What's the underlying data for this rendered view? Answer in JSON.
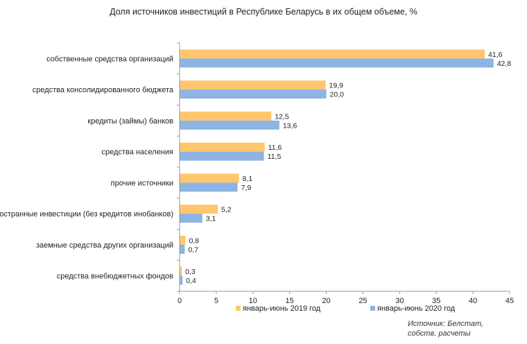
{
  "chart_data": {
    "type": "bar",
    "orientation": "horizontal",
    "title": "Доля источников инвестиций в Республике Беларусь в их общем объеме, %",
    "categories": [
      "собственные средства организаций",
      "средства консолидированного бюджета",
      "кредиты (займы) банков",
      "средства населения",
      "прочие источники",
      "иностранные инвестиции (без кредитов инобанков)",
      "заемные средства других организаций",
      "средства внебюджетных фондов"
    ],
    "series": [
      {
        "name": "январь-июнь 2019 год",
        "color": "#ffc66e",
        "values": [
          41.6,
          19.9,
          12.5,
          11.6,
          8.1,
          5.2,
          0.8,
          0.3
        ],
        "labels": [
          "41,6",
          "19,9",
          "12,5",
          "11,6",
          "8,1",
          "5,2",
          "0,8",
          "0,3"
        ]
      },
      {
        "name": "январь-июнь 2020 год",
        "color": "#8db4e2",
        "values": [
          42.8,
          20.0,
          13.6,
          11.5,
          7.9,
          3.1,
          0.7,
          0.4
        ],
        "labels": [
          "42,8",
          "20,0",
          "13,6",
          "11,5",
          "7,9",
          "3,1",
          "0,7",
          "0,4"
        ]
      }
    ],
    "xlim": [
      0,
      45
    ],
    "xticks": [
      0,
      5,
      10,
      15,
      20,
      25,
      30,
      35,
      40,
      45
    ],
    "grid": false,
    "legend": "bottom"
  },
  "source_note": {
    "line1": "Источник: Белстат,",
    "line2": "собств. расчеты"
  }
}
